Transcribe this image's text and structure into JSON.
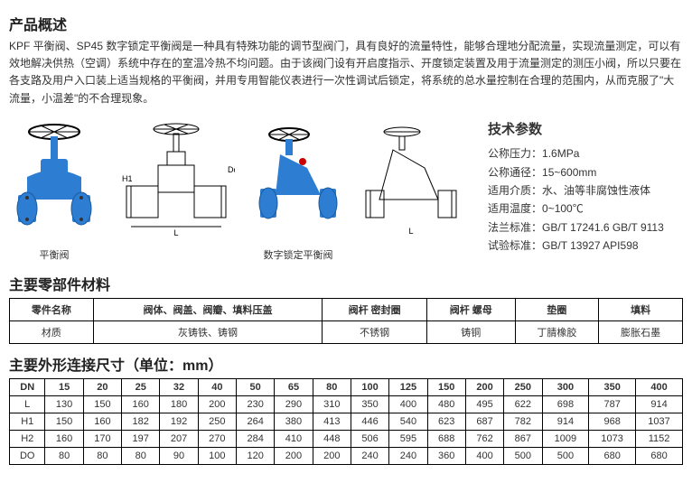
{
  "title_overview": "产品概述",
  "description": "KPF 平衡阀、SP45 数字锁定平衡阀是一种具有特殊功能的调节型阀门，具有良好的流量特性，能够合理地分配流量，实现流量测定，可以有效地解决供热（空调）系统中存在的室温冷热不均问题。由于该阀门设有开启度指示、开度锁定装置及用于流量测定的测压小阀，所以只要在各支路及用户入口装上适当规格的平衡阀，并用专用智能仪表进行一次性调试后锁定，将系统的总水量控制在合理的范围内，从而克服了\"大流量，小温差\"的不合理现象。",
  "img_labels": {
    "valve1": "平衡阀",
    "valve2": "数字锁定平衡阀"
  },
  "specs_title": "技术参数",
  "specs": {
    "pressure_label": "公称压力：",
    "pressure_value": "1.6MPa",
    "diameter_label": "公称通径：",
    "diameter_value": "15~600mm",
    "medium_label": "适用介质：",
    "medium_value": "水、油等非腐蚀性液体",
    "temp_label": "适用温度：",
    "temp_value": "0~100℃",
    "flange_label": "法兰标准：",
    "flange_value": "GB/T 17241.6 GB/T 9113",
    "test_label": "试验标准：",
    "test_value": "GB/T 13927 API598"
  },
  "materials_title": "主要零部件材料",
  "materials": {
    "headers": [
      "零件名称",
      "阀体、阀盖、阀瓣、填料压盖",
      "阀杆 密封圈",
      "阀杆 螺母",
      "垫圈",
      "填料"
    ],
    "row_label": "材质",
    "row": [
      "灰铸铁、铸钢",
      "不锈钢",
      "铸铜",
      "丁腈橡胶",
      "膨胀石墨"
    ]
  },
  "dimensions_title": "主要外形连接尺寸（单位：mm）",
  "dimensions": {
    "headers": [
      "DN",
      "15",
      "20",
      "25",
      "32",
      "40",
      "50",
      "65",
      "80",
      "100",
      "125",
      "150",
      "200",
      "250",
      "300",
      "350",
      "400"
    ],
    "rows": [
      [
        "L",
        "130",
        "150",
        "160",
        "180",
        "200",
        "230",
        "290",
        "310",
        "350",
        "400",
        "480",
        "495",
        "622",
        "698",
        "787",
        "914"
      ],
      [
        "H1",
        "150",
        "160",
        "182",
        "192",
        "250",
        "264",
        "380",
        "413",
        "446",
        "540",
        "623",
        "687",
        "782",
        "914",
        "968",
        "1037"
      ],
      [
        "H2",
        "160",
        "170",
        "197",
        "207",
        "270",
        "284",
        "410",
        "448",
        "506",
        "595",
        "688",
        "762",
        "867",
        "1009",
        "1073",
        "1152"
      ],
      [
        "DO",
        "80",
        "80",
        "80",
        "90",
        "100",
        "120",
        "200",
        "200",
        "240",
        "240",
        "360",
        "400",
        "500",
        "500",
        "680",
        "680"
      ]
    ]
  },
  "colors": {
    "valve_blue": "#2d7dd2",
    "black": "#000000",
    "text": "#333333"
  }
}
